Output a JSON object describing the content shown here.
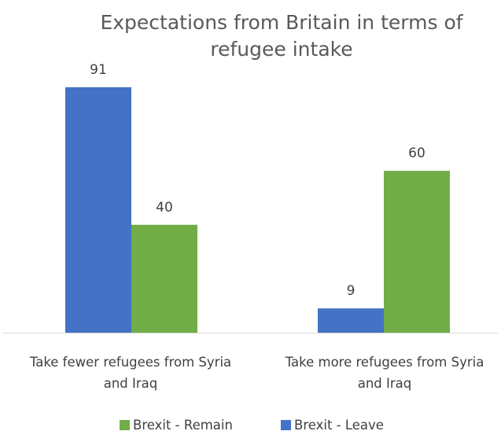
{
  "chart_data": {
    "type": "bar",
    "title": "Expectations from Britain in terms of refugee intake",
    "title_lines": [
      "Expectations from Britain in terms of",
      "refugee intake"
    ],
    "categories": [
      "Take fewer refugees from Syria and Iraq",
      "Take more refugees from Syria and Iraq"
    ],
    "category_lines": [
      [
        "Take fewer refugees from Syria",
        "and Iraq"
      ],
      [
        "Take more refugees from Syria",
        "and Iraq"
      ]
    ],
    "series": [
      {
        "name": "Brexit - Leave",
        "values": [
          91,
          9
        ],
        "color": "#4472C4"
      },
      {
        "name": "Brexit - Remain",
        "values": [
          40,
          60
        ],
        "color": "#70AD47"
      }
    ],
    "legend_order": [
      "Brexit - Remain",
      "Brexit - Leave"
    ],
    "data_labels": true,
    "grid": false,
    "legend_position": "bottom",
    "ylim": [
      0,
      100
    ],
    "xlabel": "",
    "ylabel": ""
  },
  "colors": {
    "axis": "#D9D9D9",
    "text": "#404040",
    "title": "#595959"
  }
}
